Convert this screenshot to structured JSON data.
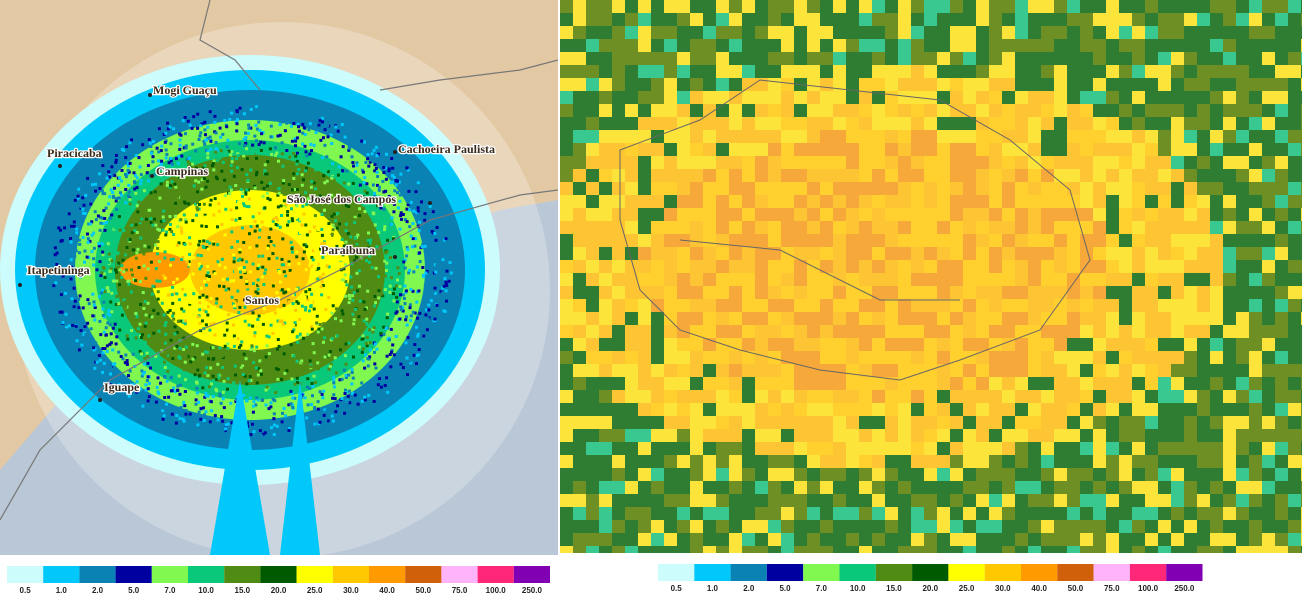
{
  "left_map": {
    "cities": [
      {
        "label": "Mogi Guaçu"
      },
      {
        "label": "Piracicaba"
      },
      {
        "label": "Campinas"
      },
      {
        "label": "Cachoeira Paulista"
      },
      {
        "label": "São José dos Campos"
      },
      {
        "label": "Paraibuna"
      },
      {
        "label": "Itapetininga"
      },
      {
        "label": "Santos"
      },
      {
        "label": "Iguape"
      }
    ]
  },
  "legend": {
    "labels": [
      "0.5",
      "1.0",
      "2.0",
      "5.0",
      "7.0",
      "10.0",
      "15.0",
      "20.0",
      "25.0",
      "30.0",
      "40.0",
      "50.0",
      "75.0",
      "100.0",
      "250.0"
    ],
    "colors": [
      "#ccfcfc",
      "#00c8fa",
      "#0a82b4",
      "#0000a0",
      "#80f850",
      "#0ac87a",
      "#508c14",
      "#005a00",
      "#ffff00",
      "#ffc800",
      "#ff9a00",
      "#d0600a",
      "#ffb4fa",
      "#ff2878",
      "#8200b4"
    ]
  }
}
